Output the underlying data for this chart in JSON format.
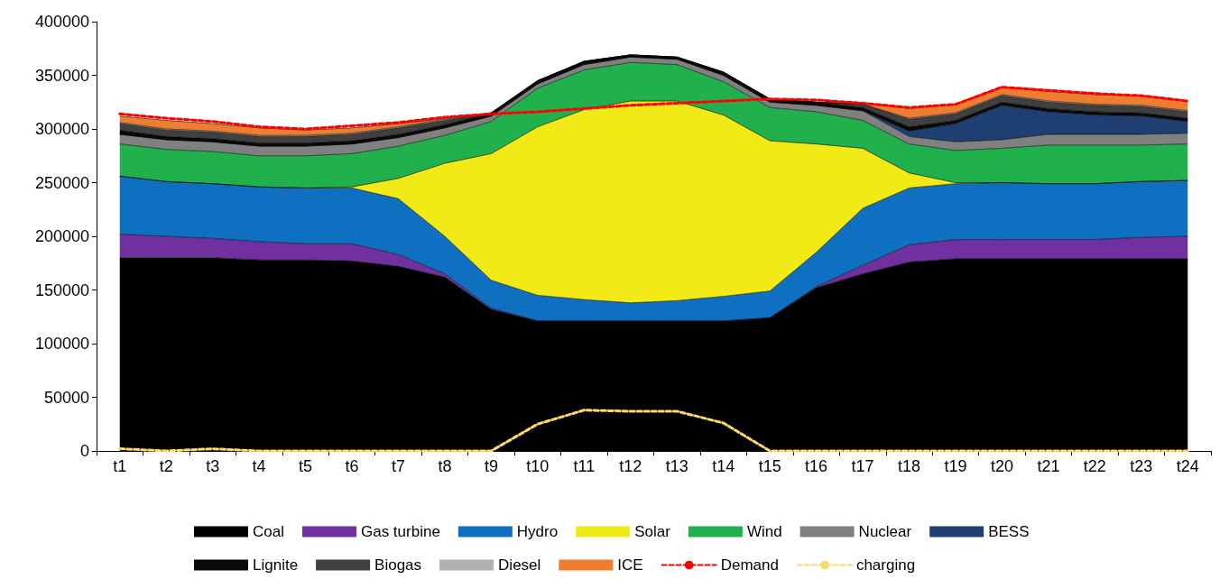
{
  "chart_data": {
    "type": "area",
    "stacked": true,
    "categories": [
      "t1",
      "t2",
      "t3",
      "t4",
      "t5",
      "t6",
      "t7",
      "t8",
      "t9",
      "t10",
      "t11",
      "t12",
      "t13",
      "t14",
      "t15",
      "t16",
      "t17",
      "t18",
      "t19",
      "t20",
      "t21",
      "t22",
      "t23",
      "t24"
    ],
    "ylim": [
      0,
      400000
    ],
    "yticks": [
      0,
      50000,
      100000,
      150000,
      200000,
      250000,
      300000,
      350000,
      400000
    ],
    "grid": false,
    "legend": "bottom",
    "series": [
      {
        "name": "Coal",
        "color": "#000000",
        "values": [
          180000,
          180000,
          180000,
          178000,
          178000,
          177000,
          172000,
          162000,
          132000,
          121000,
          121000,
          121000,
          121000,
          121000,
          124000,
          152000,
          165000,
          176000,
          179000,
          179000,
          179000,
          179000,
          179000,
          179000
        ]
      },
      {
        "name": "Gas turbine",
        "color": "#7030a0",
        "values": [
          22000,
          20000,
          18000,
          17000,
          15000,
          16000,
          11000,
          3000,
          1000,
          0,
          0,
          0,
          0,
          0,
          0,
          1000,
          8000,
          16000,
          18000,
          18000,
          18000,
          18000,
          20000,
          21000
        ]
      },
      {
        "name": "Hydro",
        "color": "#0f6fc0",
        "values": [
          54000,
          51000,
          51000,
          51000,
          52000,
          52000,
          52000,
          35000,
          26000,
          24000,
          20000,
          17000,
          19000,
          23000,
          25000,
          32000,
          53000,
          53000,
          52000,
          53000,
          52000,
          52000,
          52000,
          52000
        ]
      },
      {
        "name": "Solar",
        "color": "#f2ea16",
        "values": [
          0,
          0,
          0,
          0,
          0,
          1000,
          19000,
          68000,
          118000,
          157000,
          177000,
          188000,
          186000,
          169000,
          140000,
          101000,
          56000,
          14000,
          1000,
          0,
          0,
          0,
          0,
          0
        ]
      },
      {
        "name": "Wind",
        "color": "#20b04c",
        "values": [
          30000,
          30000,
          30000,
          29000,
          30000,
          31000,
          30000,
          26000,
          30000,
          36000,
          37000,
          36000,
          34000,
          31000,
          31000,
          30000,
          26000,
          27000,
          30000,
          32000,
          36000,
          36000,
          34000,
          34000
        ]
      },
      {
        "name": "Nuclear",
        "color": "#808080",
        "values": [
          9000,
          9000,
          9000,
          9000,
          9000,
          9000,
          8000,
          7000,
          5000,
          4000,
          5000,
          5000,
          5000,
          6000,
          5000,
          6000,
          9000,
          7000,
          8000,
          8000,
          10000,
          10000,
          10000,
          10000
        ]
      },
      {
        "name": "BESS",
        "color": "#1f3f73",
        "values": [
          0,
          0,
          0,
          0,
          0,
          0,
          0,
          0,
          0,
          0,
          0,
          0,
          0,
          0,
          0,
          0,
          0,
          5000,
          17000,
          32000,
          21000,
          18000,
          17000,
          11000
        ]
      },
      {
        "name": "Lignite",
        "color": "#0a0a0a",
        "values": [
          4000,
          3000,
          3000,
          3000,
          3000,
          3000,
          3000,
          3000,
          3000,
          3000,
          3000,
          2000,
          2000,
          3000,
          3000,
          3000,
          3000,
          4000,
          3000,
          3000,
          3000,
          3000,
          3000,
          3000
        ]
      },
      {
        "name": "Biogas",
        "color": "#404040",
        "values": [
          6000,
          6000,
          6000,
          6000,
          6000,
          6000,
          6000,
          4000,
          0,
          0,
          0,
          0,
          0,
          0,
          0,
          0,
          3000,
          7000,
          6000,
          6000,
          6000,
          6000,
          6000,
          6000
        ]
      },
      {
        "name": "Diesel",
        "color": "#b0b0b0",
        "values": [
          1000,
          1000,
          1000,
          1000,
          1000,
          1000,
          1000,
          1000,
          0,
          0,
          0,
          0,
          0,
          0,
          0,
          0,
          0,
          1000,
          1000,
          1000,
          1000,
          1000,
          1000,
          1000
        ]
      },
      {
        "name": "ICE",
        "color": "#ed7d31",
        "values": [
          6000,
          8000,
          7000,
          7000,
          5000,
          5000,
          3000,
          1000,
          0,
          0,
          0,
          0,
          0,
          0,
          0,
          0,
          1000,
          9000,
          8000,
          7000,
          9000,
          9000,
          9000,
          9000
        ]
      },
      {
        "name": "Demand",
        "type": "line",
        "line_style": "dashed",
        "color": "#ff0000",
        "values": [
          314000,
          310000,
          307000,
          302000,
          300000,
          303000,
          306000,
          311000,
          314000,
          316000,
          319000,
          322000,
          324000,
          326000,
          328000,
          327000,
          324000,
          320000,
          323000,
          339000,
          336000,
          333000,
          331000,
          326000
        ]
      },
      {
        "name": "charging",
        "type": "line",
        "line_style": "dashed",
        "color": "#ffd966",
        "values": [
          2000,
          0,
          2000,
          0,
          0,
          0,
          0,
          0,
          0,
          25000,
          38000,
          37000,
          37000,
          26000,
          0,
          0,
          0,
          0,
          0,
          0,
          0,
          0,
          0,
          0
        ]
      }
    ]
  }
}
